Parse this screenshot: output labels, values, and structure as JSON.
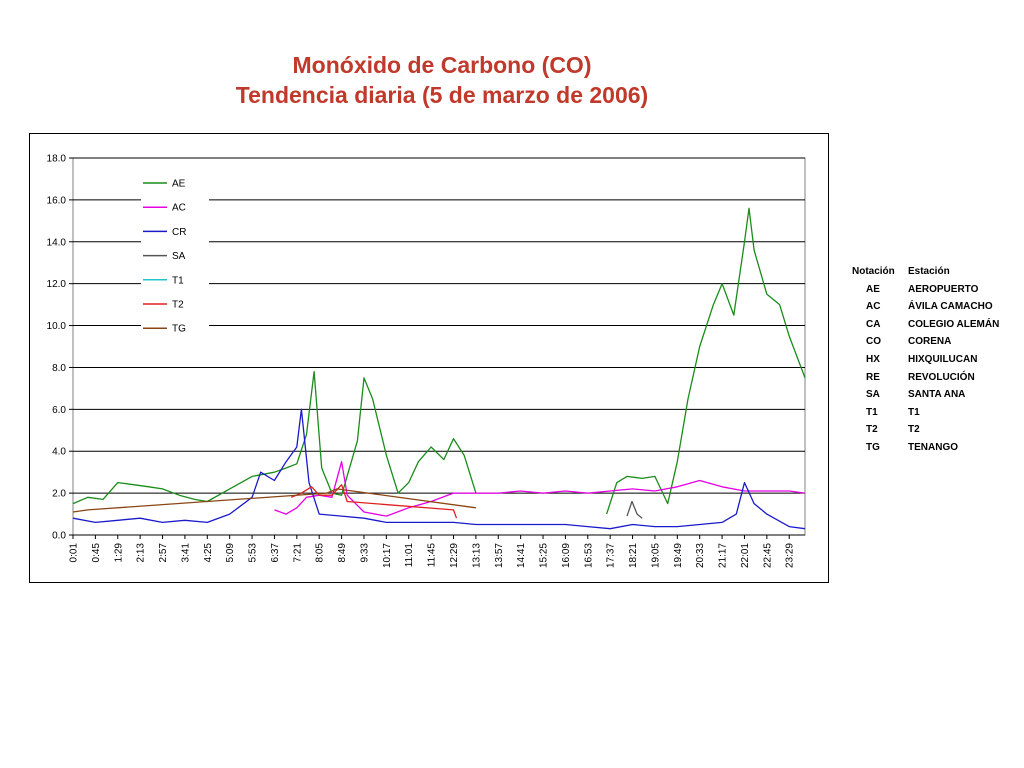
{
  "header": {
    "title_line1": "Monóxido de Carbono (CO)",
    "title_line2": "Tendencia diaria (5 de marzo de 2006)"
  },
  "stations_table": {
    "header_code": "Notación",
    "header_name": "Estación",
    "rows": [
      {
        "code": "AE",
        "name": "AEROPUERTO"
      },
      {
        "code": "AC",
        "name": "ÁVILA CAMACHO"
      },
      {
        "code": "CA",
        "name": "COLEGIO ALEMÁN"
      },
      {
        "code": "CO",
        "name": "CORENA"
      },
      {
        "code": "HX",
        "name": "HIXQUILUCAN"
      },
      {
        "code": "RE",
        "name": "REVOLUCIÓN"
      },
      {
        "code": "SA",
        "name": "SANTA ANA"
      },
      {
        "code": "T1",
        "name": "T1"
      },
      {
        "code": "T2",
        "name": "T2"
      },
      {
        "code": "TG",
        "name": "TENANGO"
      }
    ]
  },
  "chart_data": {
    "type": "line",
    "title": "",
    "xlabel": "",
    "ylabel": "",
    "ylim": [
      0,
      18
    ],
    "yticks": [
      "0.0",
      "2.0",
      "4.0",
      "6.0",
      "8.0",
      "10.0",
      "12.0",
      "14.0",
      "16.0",
      "18.0"
    ],
    "xlim": [
      "0:01",
      "24:00"
    ],
    "xticks": [
      "0:01",
      "0:45",
      "1:29",
      "2:13",
      "2:57",
      "3:41",
      "4:25",
      "5:09",
      "5:53",
      "6:37",
      "7:21",
      "8:05",
      "8:49",
      "9:33",
      "10:17",
      "11:01",
      "11:45",
      "12:29",
      "13:13",
      "13:57",
      "14:41",
      "15:25",
      "16:09",
      "16:53",
      "17:37",
      "18:21",
      "19:05",
      "19:49",
      "20:33",
      "21:17",
      "22:01",
      "22:45",
      "23:29"
    ],
    "grid": "horizontal",
    "legend_position": "inside-top-left",
    "series": [
      {
        "name": "AE",
        "color": "#1a8c1a",
        "points": [
          [
            "0:01",
            1.5
          ],
          [
            "0:30",
            1.8
          ],
          [
            "1:00",
            1.7
          ],
          [
            "1:29",
            2.5
          ],
          [
            "2:00",
            2.4
          ],
          [
            "2:30",
            2.3
          ],
          [
            "2:57",
            2.2
          ],
          [
            "3:30",
            1.9
          ],
          [
            "4:00",
            1.7
          ],
          [
            "4:25",
            1.6
          ],
          [
            "5:09",
            2.2
          ],
          [
            "5:53",
            2.8
          ],
          [
            "6:37",
            3.0
          ],
          [
            "7:00",
            3.2
          ],
          [
            "7:21",
            3.4
          ],
          [
            "7:40",
            4.8
          ],
          [
            "7:55",
            7.8
          ],
          [
            "8:10",
            3.2
          ],
          [
            "8:30",
            2.0
          ],
          [
            "8:49",
            1.9
          ],
          [
            "9:20",
            4.5
          ],
          [
            "9:33",
            7.5
          ],
          [
            "9:50",
            6.5
          ],
          [
            "10:17",
            3.8
          ],
          [
            "10:40",
            2.0
          ],
          [
            "11:01",
            2.5
          ],
          [
            "11:20",
            3.5
          ],
          [
            "11:45",
            4.2
          ],
          [
            "12:10",
            3.6
          ],
          [
            "12:29",
            4.6
          ],
          [
            "12:50",
            3.8
          ],
          [
            "13:13",
            2.0
          ]
        ]
      },
      {
        "name": "AE",
        "color": "#1a8c1a",
        "points": [
          [
            "17:30",
            1.0
          ],
          [
            "17:50",
            2.5
          ],
          [
            "18:10",
            2.8
          ],
          [
            "18:40",
            2.7
          ],
          [
            "19:05",
            2.8
          ],
          [
            "19:30",
            1.5
          ],
          [
            "19:49",
            3.5
          ],
          [
            "20:10",
            6.5
          ],
          [
            "20:33",
            9.0
          ],
          [
            "21:00",
            11.0
          ],
          [
            "21:17",
            12.0
          ],
          [
            "21:40",
            10.5
          ],
          [
            "22:01",
            14.0
          ],
          [
            "22:10",
            15.6
          ],
          [
            "22:20",
            13.6
          ],
          [
            "22:45",
            11.5
          ],
          [
            "23:10",
            11.0
          ],
          [
            "23:29",
            9.5
          ],
          [
            "24:00",
            7.5
          ]
        ]
      },
      {
        "name": "AC",
        "color": "#e600e6",
        "points": [
          [
            "6:37",
            1.2
          ],
          [
            "7:00",
            1.0
          ],
          [
            "7:21",
            1.3
          ],
          [
            "7:40",
            1.8
          ],
          [
            "8:05",
            1.9
          ],
          [
            "8:30",
            1.8
          ],
          [
            "8:49",
            3.5
          ],
          [
            "9:00",
            1.9
          ],
          [
            "9:33",
            1.1
          ],
          [
            "10:17",
            0.9
          ],
          [
            "11:01",
            1.3
          ],
          [
            "11:45",
            1.6
          ],
          [
            "12:29",
            2.0
          ],
          [
            "13:13",
            2.0
          ],
          [
            "13:57",
            2.0
          ],
          [
            "14:41",
            2.1
          ],
          [
            "15:25",
            2.0
          ],
          [
            "16:09",
            2.1
          ],
          [
            "16:53",
            2.0
          ],
          [
            "17:37",
            2.1
          ],
          [
            "18:21",
            2.2
          ],
          [
            "19:05",
            2.1
          ],
          [
            "19:49",
            2.3
          ],
          [
            "20:33",
            2.6
          ],
          [
            "21:17",
            2.3
          ],
          [
            "22:01",
            2.1
          ],
          [
            "22:45",
            2.1
          ],
          [
            "23:29",
            2.1
          ],
          [
            "24:00",
            2.0
          ]
        ]
      },
      {
        "name": "CR",
        "color": "#1a1acc",
        "points": [
          [
            "0:01",
            0.8
          ],
          [
            "0:45",
            0.6
          ],
          [
            "1:29",
            0.7
          ],
          [
            "2:13",
            0.8
          ],
          [
            "2:57",
            0.6
          ],
          [
            "3:41",
            0.7
          ],
          [
            "4:25",
            0.6
          ],
          [
            "5:09",
            1.0
          ],
          [
            "5:53",
            1.8
          ],
          [
            "6:10",
            3.0
          ],
          [
            "6:37",
            2.6
          ],
          [
            "7:00",
            3.5
          ],
          [
            "7:21",
            4.2
          ],
          [
            "7:30",
            6.0
          ],
          [
            "7:45",
            2.5
          ],
          [
            "8:05",
            1.0
          ],
          [
            "8:49",
            0.9
          ],
          [
            "9:33",
            0.8
          ],
          [
            "10:17",
            0.6
          ],
          [
            "11:01",
            0.6
          ],
          [
            "11:45",
            0.6
          ],
          [
            "12:29",
            0.6
          ],
          [
            "13:13",
            0.5
          ],
          [
            "13:57",
            0.5
          ],
          [
            "14:41",
            0.5
          ],
          [
            "15:25",
            0.5
          ],
          [
            "16:09",
            0.5
          ],
          [
            "16:53",
            0.4
          ],
          [
            "17:37",
            0.3
          ],
          [
            "18:21",
            0.5
          ],
          [
            "19:05",
            0.4
          ],
          [
            "19:49",
            0.4
          ],
          [
            "20:33",
            0.5
          ],
          [
            "21:17",
            0.6
          ],
          [
            "21:45",
            1.0
          ],
          [
            "22:01",
            2.5
          ],
          [
            "22:20",
            1.5
          ],
          [
            "22:45",
            1.0
          ],
          [
            "23:29",
            0.4
          ],
          [
            "24:00",
            0.3
          ]
        ]
      },
      {
        "name": "SA",
        "color": "#555555",
        "points": [
          [
            "18:10",
            0.9
          ],
          [
            "18:20",
            1.6
          ],
          [
            "18:30",
            1.0
          ],
          [
            "18:40",
            0.8
          ]
        ]
      },
      {
        "name": "T1",
        "color": "#22c4cc",
        "points": []
      },
      {
        "name": "T2",
        "color": "#e02020",
        "points": [
          [
            "7:10",
            1.8
          ],
          [
            "7:30",
            2.0
          ],
          [
            "7:50",
            2.3
          ],
          [
            "8:05",
            1.9
          ],
          [
            "8:30",
            1.9
          ],
          [
            "8:49",
            2.4
          ],
          [
            "9:00",
            1.6
          ],
          [
            "12:29",
            1.2
          ],
          [
            "12:35",
            0.8
          ]
        ]
      },
      {
        "name": "TG",
        "color": "#8b4513",
        "points": [
          [
            "0:01",
            1.1
          ],
          [
            "0:30",
            1.2
          ],
          [
            "8:20",
            2.0
          ],
          [
            "8:40",
            2.2
          ],
          [
            "13:13",
            1.3
          ]
        ]
      }
    ]
  }
}
